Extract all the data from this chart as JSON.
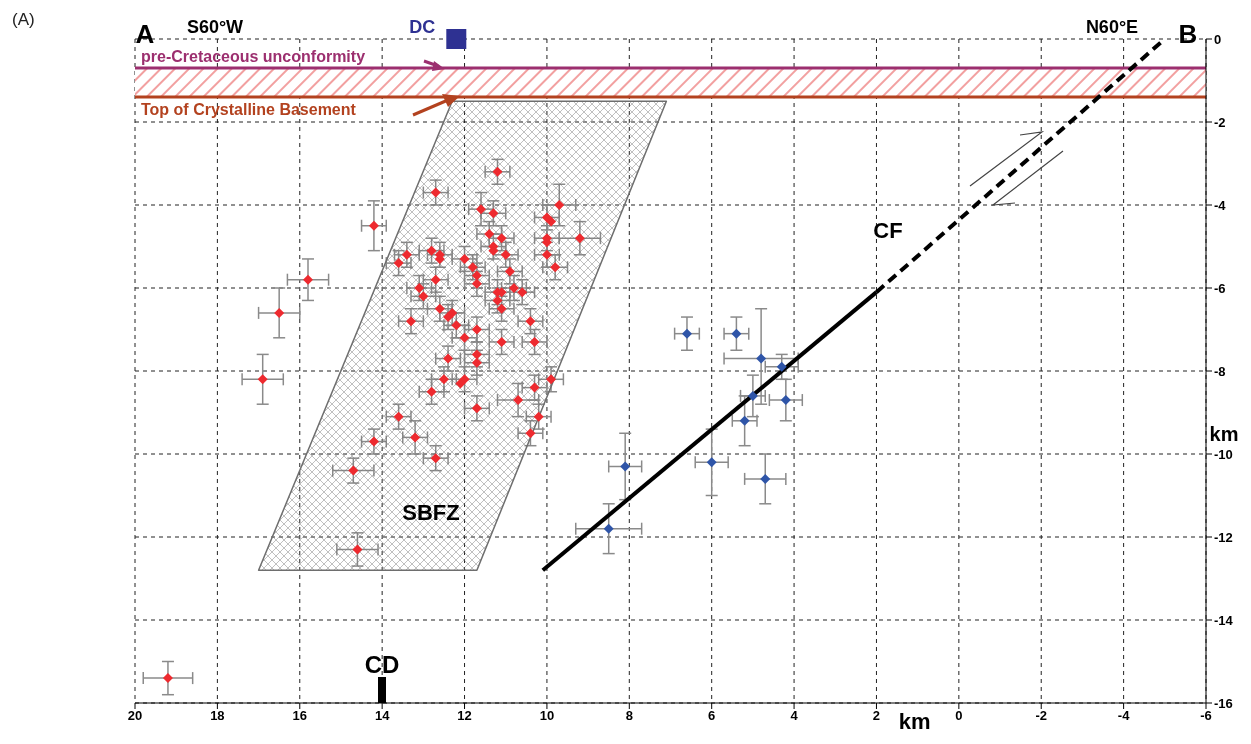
{
  "chart_data": {
    "type": "scatter",
    "annotations": [
      "(A)",
      "A",
      {
        "text": "B",
        "x": -5,
        "y": 0
      },
      "S60°W",
      "N60°E",
      {
        "text": "DC",
        "x": 12.2,
        "y": 0
      },
      "CD",
      "SBFZ",
      "CF"
    ],
    "xlabel": "km",
    "ylabel": "km",
    "xlim": [
      20,
      -6
    ],
    "xticks": [
      20,
      18,
      16,
      14,
      12,
      10,
      8,
      6,
      4,
      2,
      0,
      -2,
      -4,
      -6
    ],
    "ylim": [
      -16,
      0
    ],
    "yticks": [
      0,
      -2,
      -4,
      -6,
      -8,
      -10,
      -12,
      -14,
      -16
    ],
    "grid": true,
    "ref_lines": [
      {
        "axis": "y",
        "value": -0.7,
        "label": "pre-Cretaceous unconformity",
        "color": "#9c2f6f"
      },
      {
        "axis": "y",
        "value": -1.4,
        "label": "Top of Crystalline Basement",
        "color": "#b3421f"
      }
    ],
    "bands": [
      {
        "axis": "y",
        "from": -1.4,
        "to": -0.7,
        "color": "#f2a0a0"
      }
    ],
    "series": [
      {
        "type": "area",
        "color": "#6e6e6e",
        "marker": "none",
        "x": [
          12.3,
          7.1,
          11.7,
          17.0,
          12.3
        ],
        "values": [
          -1.5,
          -1.5,
          -12.8,
          -12.8,
          -1.5
        ]
      },
      {
        "type": "line",
        "color": "#000000",
        "marker": "none",
        "line_style": "solid",
        "x": [
          10.1,
          2.0
        ],
        "values": [
          -12.8,
          -6.1
        ]
      },
      {
        "type": "line",
        "color": "#000000",
        "marker": "none",
        "line_style": "dashed",
        "x": [
          2.0,
          -5.0
        ],
        "values": [
          -6.1,
          0
        ]
      },
      {
        "color": "#ee2a2f",
        "marker": "diamond",
        "x": [
          11.2,
          12.7,
          11.6,
          11.3,
          9.7,
          14.2,
          10.0,
          9.9,
          11.4,
          11.1,
          10.0,
          10.0,
          9.2,
          13.4,
          13.6,
          12.8,
          12.6,
          12.6,
          11.3,
          11.3,
          11.0,
          12.0,
          10.0,
          9.8,
          15.8,
          12.7,
          11.8,
          11.7,
          10.9,
          11.7,
          13.1,
          13.0,
          11.2,
          11.1,
          10.8,
          10.6,
          11.2,
          16.5,
          12.6,
          12.3,
          12.4,
          12.2,
          13.3,
          11.1,
          10.4,
          11.7,
          12.0,
          11.1,
          10.3,
          12.4,
          11.7,
          11.7,
          16.9,
          12.5,
          12.0,
          12.1,
          12.8,
          9.9,
          10.3,
          10.7,
          11.7,
          13.6,
          10.2,
          10.4,
          13.2,
          14.2,
          12.7,
          14.7,
          14.6,
          19.2
        ],
        "values": [
          -3.2,
          -3.7,
          -4.1,
          -4.2,
          -4.0,
          -4.5,
          -4.3,
          -4.4,
          -4.7,
          -4.8,
          -4.8,
          -4.9,
          -4.8,
          -5.2,
          -5.4,
          -5.1,
          -5.2,
          -5.3,
          -5.0,
          -5.1,
          -5.2,
          -5.3,
          -5.2,
          -5.5,
          -5.8,
          -5.8,
          -5.5,
          -5.7,
          -5.6,
          -5.9,
          -6.0,
          -6.2,
          -6.1,
          -6.1,
          -6.0,
          -6.1,
          -6.3,
          -6.6,
          -6.5,
          -6.6,
          -6.7,
          -6.9,
          -6.8,
          -6.5,
          -6.8,
          -7.0,
          -7.2,
          -7.3,
          -7.3,
          -7.7,
          -7.6,
          -7.8,
          -8.2,
          -8.2,
          -8.2,
          -8.3,
          -8.5,
          -8.2,
          -8.4,
          -8.7,
          -8.9,
          -9.1,
          -9.1,
          -9.5,
          -9.6,
          -9.7,
          -10.1,
          -10.4,
          -12.3,
          -15.4
        ],
        "errors": [
          0.3,
          0.3,
          0.4,
          0.3,
          0.5,
          0.6,
          0.3,
          null,
          0.3,
          0.3,
          0.3,
          null,
          0.4,
          0.3,
          0.3,
          0.3,
          0.3,
          null,
          0.3,
          null,
          0.3,
          0.3,
          0.3,
          0.3,
          0.5,
          0.3,
          0.3,
          0.3,
          0.3,
          0.3,
          0.3,
          0.3,
          0.3,
          null,
          0.3,
          0.3,
          0.3,
          0.6,
          0.3,
          0.3,
          0.3,
          0.3,
          0.3,
          0.3,
          0.3,
          0.3,
          0.3,
          0.3,
          0.3,
          0.3,
          0.3,
          0.3,
          0.6,
          0.3,
          0.3,
          null,
          0.3,
          0.3,
          0.3,
          0.4,
          0.3,
          0.3,
          0.3,
          0.3,
          0.4,
          0.3,
          0.3,
          0.3,
          0.4,
          0.4
        ],
        "xerrors": [
          0.3,
          0.3,
          0.3,
          0.3,
          0.4,
          0.3,
          0.3,
          null,
          0.3,
          0.3,
          0.3,
          null,
          0.5,
          0.3,
          0.3,
          0.3,
          0.3,
          null,
          0.3,
          null,
          0.3,
          0.3,
          0.3,
          0.3,
          0.5,
          0.3,
          0.3,
          0.3,
          0.3,
          0.3,
          0.3,
          0.3,
          0.3,
          null,
          0.3,
          0.3,
          0.3,
          0.5,
          0.3,
          0.3,
          null,
          0.3,
          0.3,
          0.3,
          0.3,
          0.3,
          0.3,
          0.3,
          0.3,
          0.3,
          0.3,
          0.3,
          0.5,
          0.3,
          0.3,
          null,
          0.3,
          0.3,
          0.3,
          0.5,
          0.3,
          0.3,
          0.3,
          0.3,
          0.3,
          0.3,
          0.3,
          0.5,
          0.5,
          0.6
        ]
      },
      {
        "color": "#2f55a8",
        "marker": "diamond",
        "x": [
          6.6,
          5.4,
          4.8,
          4.3,
          5.0,
          4.2,
          5.2,
          8.1,
          6.0,
          4.7,
          8.5
        ],
        "values": [
          -7.1,
          -7.1,
          -7.7,
          -7.9,
          -8.6,
          -8.7,
          -9.2,
          -10.3,
          -10.2,
          -10.6,
          -11.8
        ],
        "errors": [
          0.4,
          0.4,
          [
            -8.8,
            -6.5
          ],
          0.3,
          0.5,
          0.5,
          0.6,
          0.8,
          0.8,
          0.6,
          0.6
        ],
        "xerrors": [
          0.3,
          0.3,
          0.9,
          0.4,
          0.3,
          0.4,
          0.3,
          0.4,
          0.4,
          0.5,
          0.8
        ]
      }
    ]
  }
}
